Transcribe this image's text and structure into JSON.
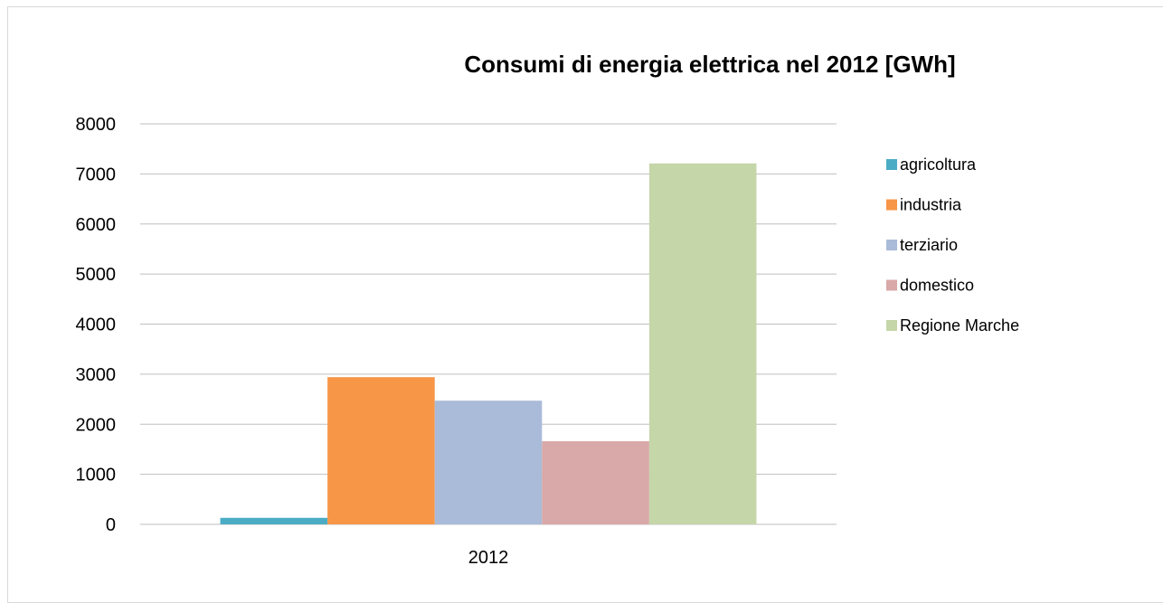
{
  "chart_data": {
    "type": "bar",
    "title": "Consumi di energia elettrica nel 2012 [GWh]",
    "xlabel": "",
    "ylabel": "",
    "categories": [
      "2012"
    ],
    "ylim": [
      0,
      8000
    ],
    "yticks": [
      0,
      1000,
      2000,
      3000,
      4000,
      5000,
      6000,
      7000,
      8000
    ],
    "grid": true,
    "legend_position": "right",
    "series": [
      {
        "name": "agricoltura",
        "values": [
          130
        ],
        "color": "#4bacc6"
      },
      {
        "name": "industria",
        "values": [
          2940
        ],
        "color": "#f79646"
      },
      {
        "name": "terziario",
        "values": [
          2470
        ],
        "color": "#a9bbd8"
      },
      {
        "name": "domestico",
        "values": [
          1660
        ],
        "color": "#d9a8a8"
      },
      {
        "name": "Regione Marche",
        "values": [
          7210
        ],
        "color": "#c5d6a9"
      }
    ]
  }
}
